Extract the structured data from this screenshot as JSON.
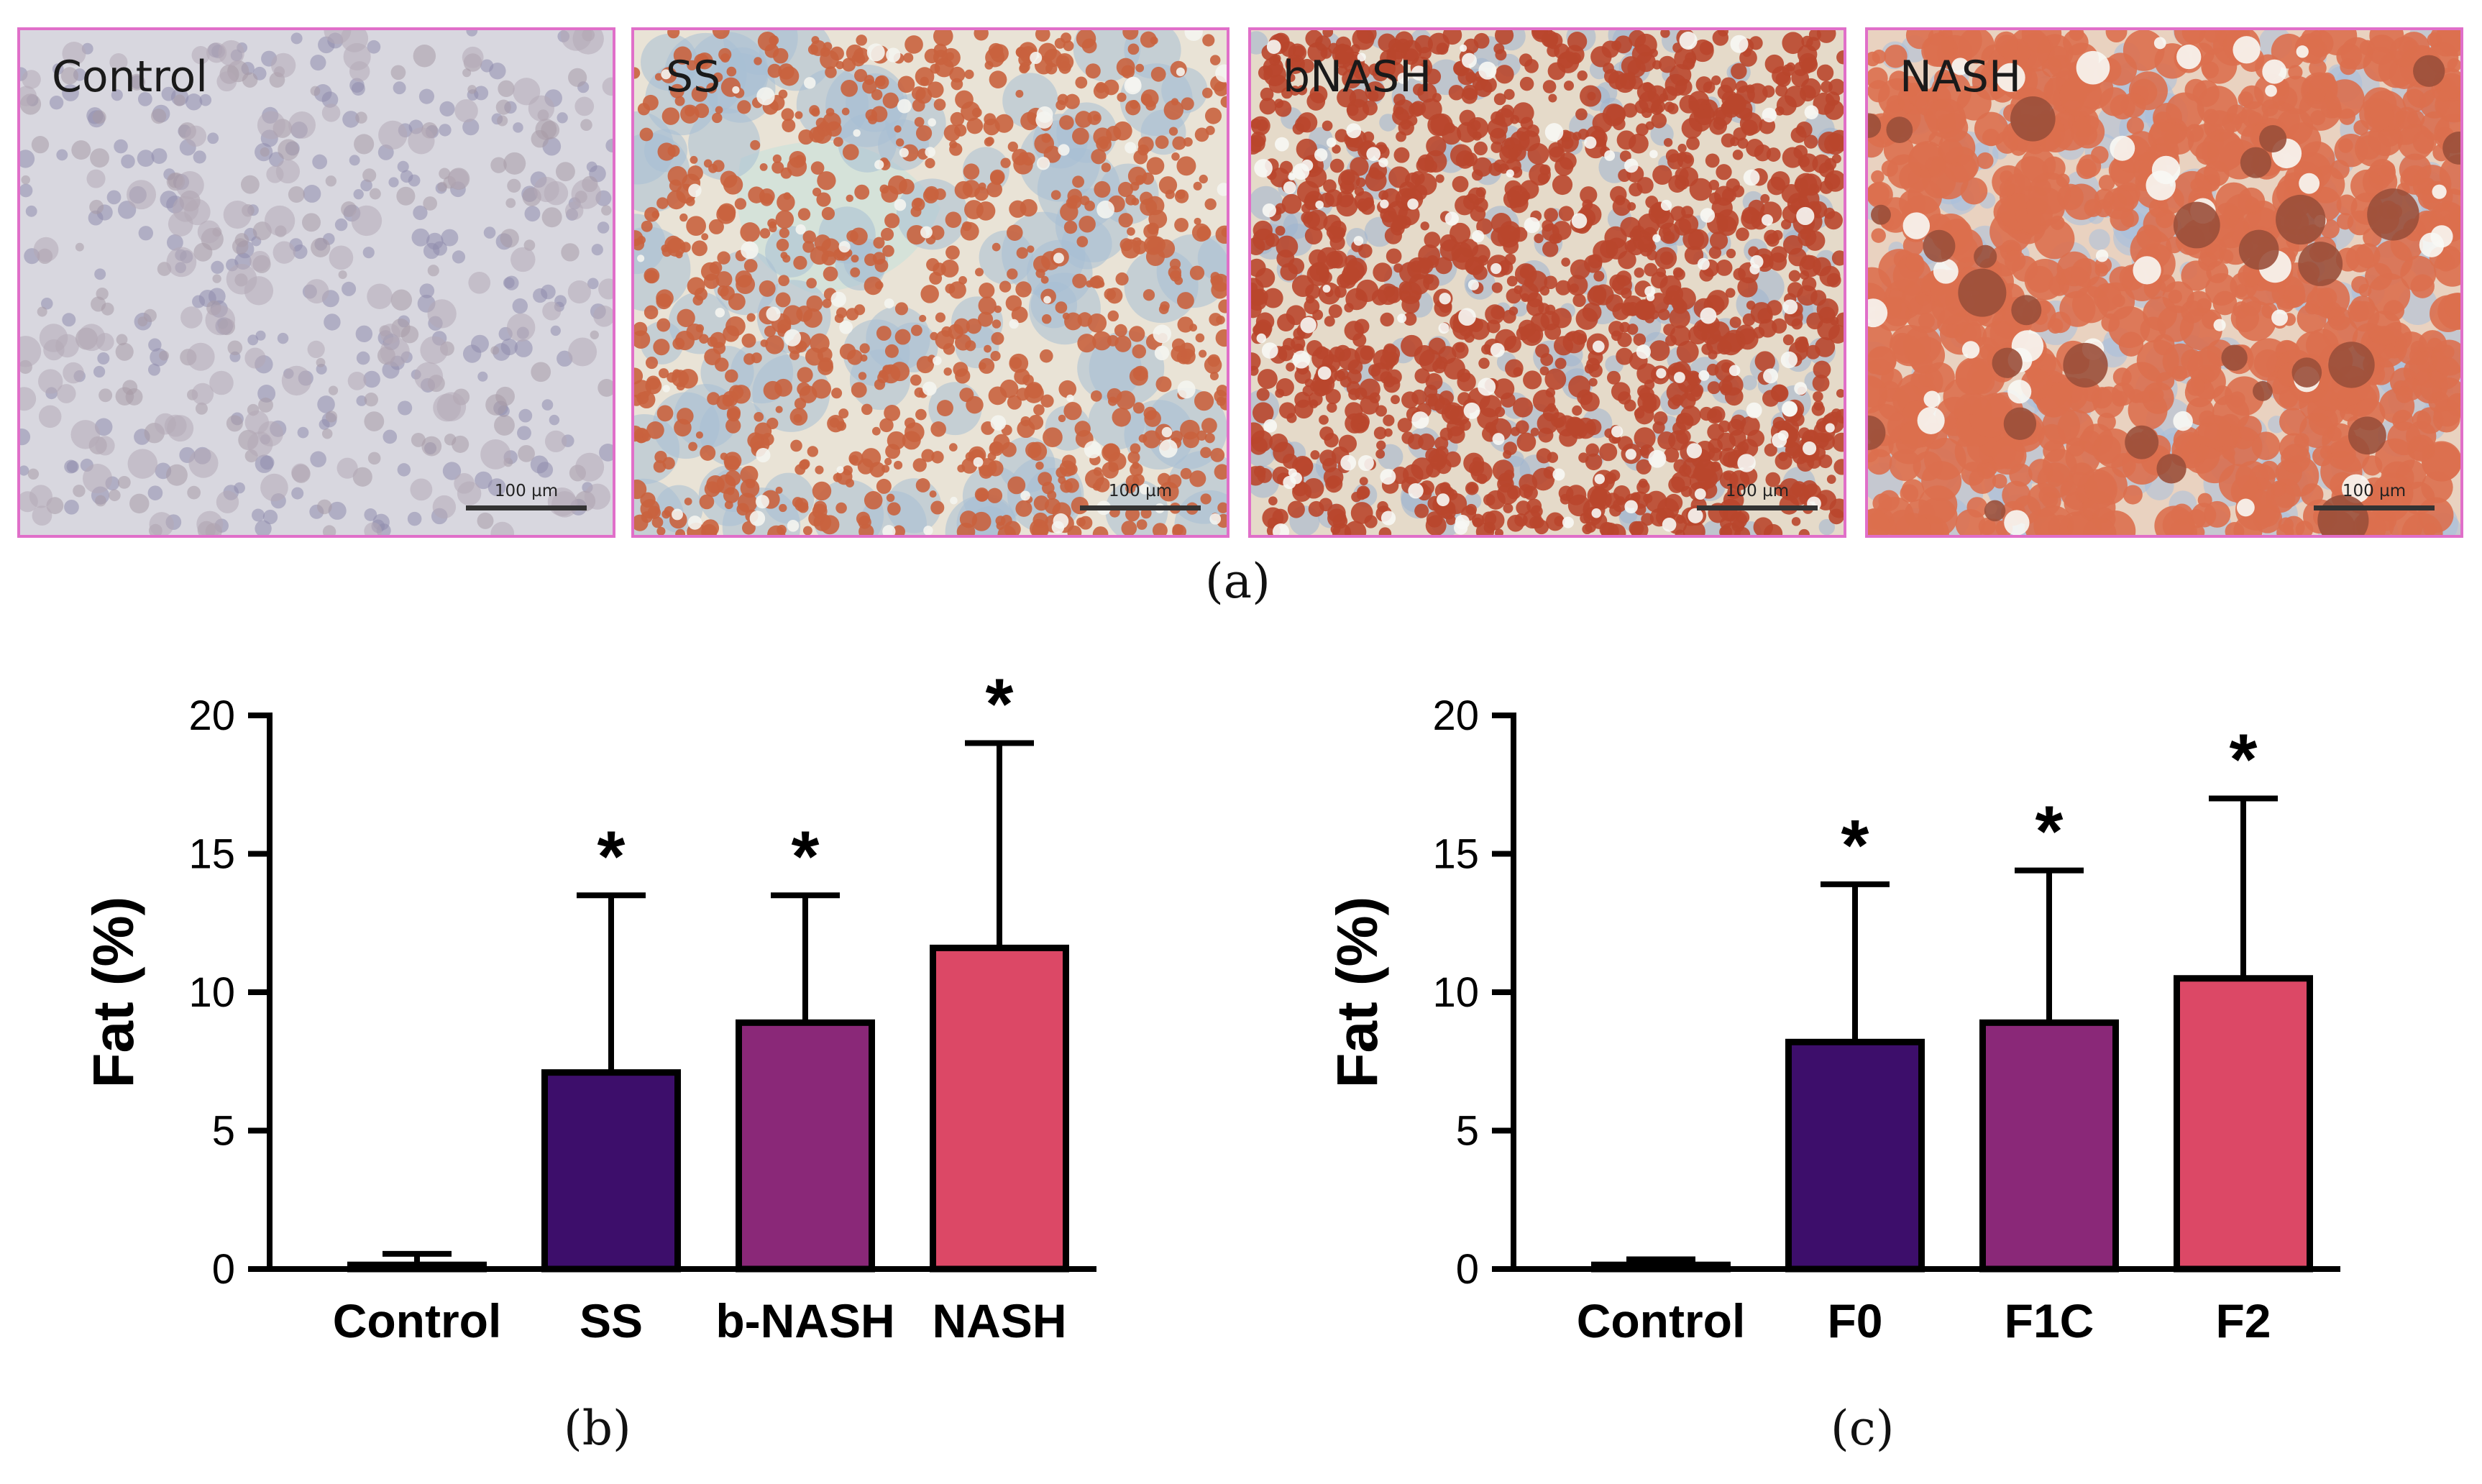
{
  "micrographs": [
    {
      "label": "Control",
      "scale": "100 µm",
      "stain": "control"
    },
    {
      "label": "SS",
      "scale": "100 µm",
      "stain": "ss"
    },
    {
      "label": "bNASH",
      "scale": "100 µm",
      "stain": "bnash"
    },
    {
      "label": "NASH",
      "scale": "100 µm",
      "stain": "nash"
    }
  ],
  "captions": {
    "a": "(a)",
    "b": "(b)",
    "c": "(c)"
  },
  "colors": {
    "control": "#ffffff",
    "ss": "#3d0e6b",
    "bnash": "#8a2878",
    "nash": "#dc4866",
    "frame": "#e06fc9"
  },
  "chart_data": [
    {
      "type": "bar",
      "panel": "b",
      "categories": [
        "Control",
        "SS",
        "b-NASH",
        "NASH"
      ],
      "values": [
        0.15,
        7.1,
        8.9,
        11.6
      ],
      "errors": [
        0.4,
        6.4,
        4.6,
        7.4
      ],
      "significance": [
        "",
        "*",
        "*",
        "*"
      ],
      "colors": [
        "#ffffff",
        "#3d0e6b",
        "#8a2878",
        "#dc4866"
      ],
      "ylabel": "Fat (%)",
      "xlabel": "",
      "ylim": [
        0,
        20
      ],
      "yticks": [
        0,
        5,
        10,
        15,
        20
      ]
    },
    {
      "type": "bar",
      "panel": "c",
      "categories": [
        "Control",
        "F0",
        "F1C",
        "F2"
      ],
      "values": [
        0.15,
        8.2,
        8.9,
        10.5
      ],
      "errors": [
        0.2,
        5.7,
        5.5,
        6.5
      ],
      "significance": [
        "",
        "*",
        "*",
        "*"
      ],
      "colors": [
        "#ffffff",
        "#3d0e6b",
        "#8a2878",
        "#dc4866"
      ],
      "ylabel": "Fat (%)",
      "xlabel": "",
      "ylim": [
        0,
        20
      ],
      "yticks": [
        0,
        5,
        10,
        15,
        20
      ]
    }
  ]
}
